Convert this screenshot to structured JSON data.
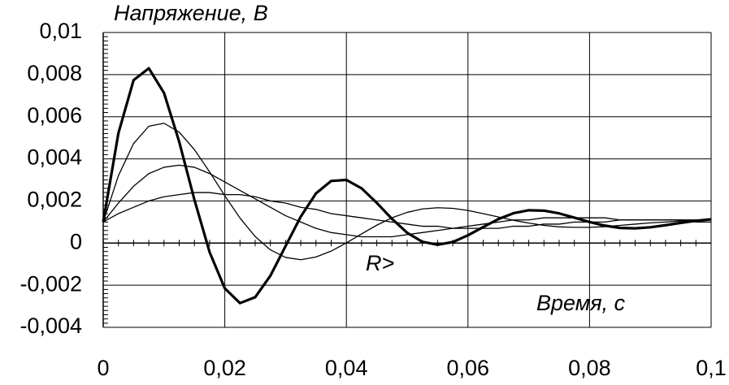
{
  "chart_data": {
    "type": "line",
    "y_label": "Напряжение, В",
    "x_label": "Время, с",
    "annotation": "R>",
    "xlim": [
      0,
      0.1
    ],
    "xticks": [
      0,
      {
        "value": 0.02,
        "label": "0,02"
      },
      {
        "value": 0.04,
        "label": "0,04"
      },
      {
        "value": 0.06,
        "label": "0,06"
      },
      {
        "value": 0.08,
        "label": "0,08"
      },
      {
        "value": 0.1,
        "label": "0,1"
      }
    ],
    "ylim": [
      -0.004,
      0.01
    ],
    "yticks": [
      {
        "value": -0.004,
        "label": "-0,004"
      },
      {
        "value": -0.002,
        "label": "-0,002"
      },
      0,
      {
        "value": 0.002,
        "label": "0,002"
      },
      {
        "value": 0.004,
        "label": "0,004"
      },
      {
        "value": 0.006,
        "label": "0,006"
      },
      {
        "value": 0.008,
        "label": "0,008"
      },
      {
        "value": 0.01,
        "label": "0,01"
      }
    ],
    "grid": true,
    "x": [
      0,
      0.0025,
      0.005,
      0.0075,
      0.01,
      0.0125,
      0.015,
      0.0175,
      0.02,
      0.0225,
      0.025,
      0.0275,
      0.03,
      0.0325,
      0.035,
      0.0375,
      0.04,
      0.0425,
      0.045,
      0.0475,
      0.05,
      0.0525,
      0.055,
      0.0575,
      0.06,
      0.0625,
      0.065,
      0.0675,
      0.07,
      0.0725,
      0.075,
      0.0775,
      0.08,
      0.0825,
      0.085,
      0.0875,
      0.09,
      0.0925,
      0.095,
      0.0975,
      0.1
    ],
    "series": [
      {
        "color": "#000000",
        "width": 3.2,
        "values": [
          0.001,
          0.00522,
          0.00774,
          0.0083,
          0.00713,
          0.00481,
          0.00206,
          -0.00043,
          -0.00215,
          -0.00285,
          -0.00257,
          -0.00155,
          -0.00014,
          0.00126,
          0.00236,
          0.00295,
          0.003,
          0.0026,
          0.00191,
          0.00115,
          0.00049,
          6e-05,
          -8e-05,
          5e-05,
          0.00037,
          0.00076,
          0.00114,
          0.00142,
          0.00156,
          0.00154,
          0.00141,
          0.00121,
          0.001,
          0.00083,
          0.00072,
          0.0007,
          0.00075,
          0.00085,
          0.00096,
          0.00106,
          0.00113
        ]
      },
      {
        "color": "#000000",
        "width": 1.3,
        "values": [
          0.001,
          0.0032,
          0.00473,
          0.00555,
          0.00569,
          0.00527,
          0.00444,
          0.00338,
          0.00225,
          0.00119,
          0.00031,
          -0.00032,
          -0.00068,
          -0.00079,
          -0.00066,
          -0.00038,
          1e-05,
          0.00044,
          0.00085,
          0.0012,
          0.00146,
          0.00162,
          0.00168,
          0.00165,
          0.00155,
          0.0014,
          0.00124,
          0.00108,
          0.00095,
          0.00084,
          0.00077,
          0.00075,
          0.00075,
          0.00078,
          0.00084,
          0.0009,
          0.00096,
          0.001,
          0.00105,
          0.00107,
          0.00109
        ]
      },
      {
        "color": "#000000",
        "width": 1.3,
        "values": [
          0.001,
          0.0019,
          0.0027,
          0.0033,
          0.0036,
          0.0037,
          0.0036,
          0.0033,
          0.0029,
          0.0025,
          0.0021,
          0.0017,
          0.0013,
          0.001,
          0.0007,
          0.0005,
          0.0004,
          0.0003,
          0.0003,
          0.0003,
          0.0004,
          0.0005,
          0.0006,
          0.0007,
          0.0008,
          0.0009,
          0.001,
          0.0011,
          0.0011,
          0.0012,
          0.0012,
          0.0012,
          0.0012,
          0.0012,
          0.0011,
          0.0011,
          0.0011,
          0.0011,
          0.0011,
          0.001,
          0.001
        ]
      },
      {
        "color": "#000000",
        "width": 1.3,
        "values": [
          0.001,
          0.0014,
          0.0017,
          0.002,
          0.0022,
          0.0023,
          0.0024,
          0.0024,
          0.0023,
          0.0023,
          0.0022,
          0.002,
          0.0019,
          0.0017,
          0.0016,
          0.0014,
          0.0013,
          0.0012,
          0.0011,
          0.001,
          0.0009,
          0.0008,
          0.0008,
          0.0007,
          0.0007,
          0.0007,
          0.0007,
          0.0008,
          0.0008,
          0.0009,
          0.0009,
          0.001,
          0.001,
          0.001,
          0.0011,
          0.0011,
          0.0011,
          0.0011,
          0.0011,
          0.0011,
          0.0011
        ]
      }
    ]
  }
}
